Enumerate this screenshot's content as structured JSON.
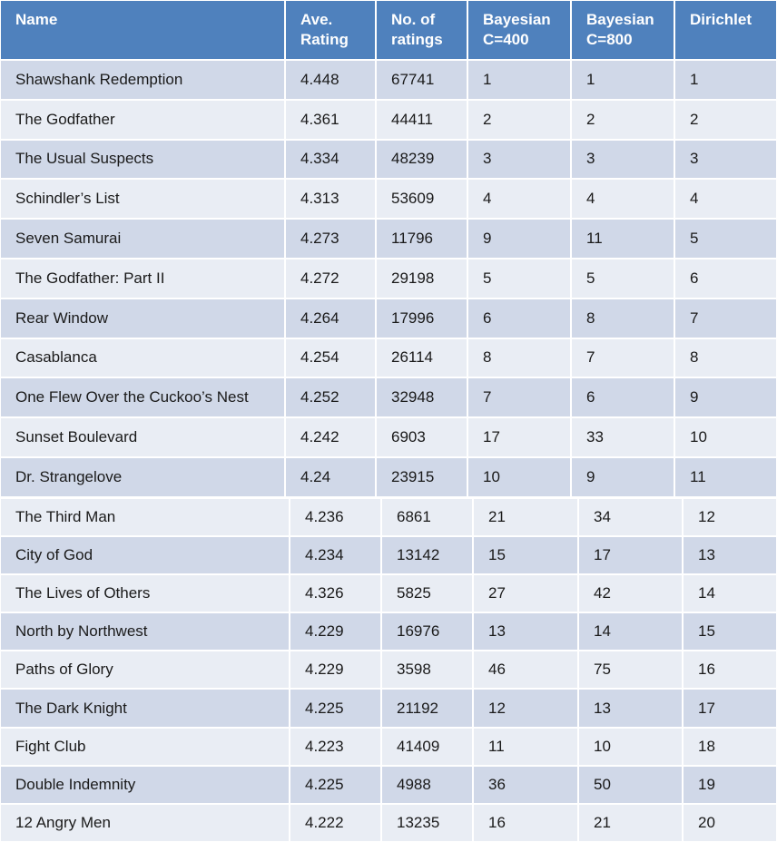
{
  "headers": [
    "Name",
    "Ave. Rating",
    "No. of ratings",
    "Bayesian C=400",
    "Bayesian C=800",
    "Dirichlet"
  ],
  "rows": [
    [
      "Shawshank Redemption",
      "4.448",
      "67741",
      "1",
      "1",
      "1"
    ],
    [
      "The Godfather",
      "4.361",
      "44411",
      "2",
      "2",
      "2"
    ],
    [
      "The Usual Suspects",
      "4.334",
      "48239",
      "3",
      "3",
      "3"
    ],
    [
      "Schindler’s List",
      "4.313",
      "53609",
      "4",
      "4",
      "4"
    ],
    [
      "Seven Samurai",
      "4.273",
      "11796",
      "9",
      "11",
      "5"
    ],
    [
      "The Godfather: Part II",
      "4.272",
      "29198",
      "5",
      "5",
      "6"
    ],
    [
      "Rear Window",
      "4.264",
      "17996",
      "6",
      "8",
      "7"
    ],
    [
      "Casablanca",
      "4.254",
      "26114",
      "8",
      "7",
      "8"
    ],
    [
      "One Flew Over the Cuckoo’s Nest",
      "4.252",
      "32948",
      "7",
      "6",
      "9"
    ],
    [
      "Sunset Boulevard",
      "4.242",
      "6903",
      "17",
      "33",
      "10"
    ],
    [
      "Dr. Strangelove",
      "4.24",
      "23915",
      "10",
      "9",
      "11"
    ],
    [
      "The Third Man",
      "4.236",
      "6861",
      "21",
      "34",
      "12"
    ],
    [
      "City of God",
      "4.234",
      "13142",
      "15",
      "17",
      "13"
    ],
    [
      "The Lives of Others",
      "4.326",
      "5825",
      "27",
      "42",
      "14"
    ],
    [
      "North by Northwest",
      "4.229",
      "16976",
      "13",
      "14",
      "15"
    ],
    [
      "Paths of Glory",
      "4.229",
      "3598",
      "46",
      "75",
      "16"
    ],
    [
      "The Dark Knight",
      "4.225",
      "21192",
      "12",
      "13",
      "17"
    ],
    [
      "Fight Club",
      "4.223",
      "41409",
      "11",
      "10",
      "18"
    ],
    [
      "Double Indemnity",
      "4.225",
      "4988",
      "36",
      "50",
      "19"
    ],
    [
      "12 Angry Men",
      "4.222",
      "13235",
      "16",
      "21",
      "20"
    ]
  ],
  "colors": {
    "header_bg": "#4f81bd",
    "band_dark": "#d0d8e8",
    "band_light": "#e9edf4"
  }
}
